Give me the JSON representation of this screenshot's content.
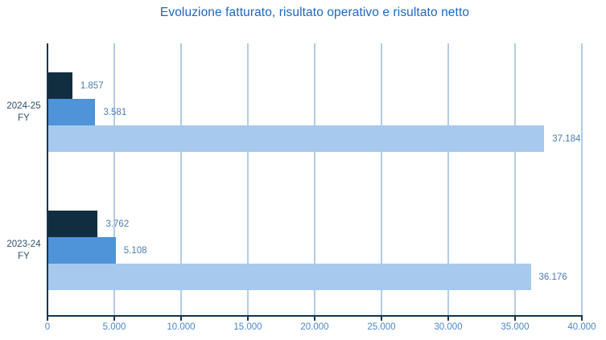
{
  "chart_data": {
    "type": "bar",
    "orientation": "horizontal",
    "title": "Evoluzione fatturato, risultato operativo e risultato netto",
    "categories": [
      "2024-25 FY",
      "2023-24 FY"
    ],
    "category_lines": [
      [
        "2024-25",
        "FY"
      ],
      [
        "2023-24",
        "FY"
      ]
    ],
    "series": [
      {
        "name": "risultato netto",
        "color": "#112e40",
        "values": [
          1857,
          3762
        ],
        "labels": [
          "1.857",
          "3.762"
        ]
      },
      {
        "name": "risultato operativo",
        "color": "#4f93d8",
        "values": [
          3581,
          5108
        ],
        "labels": [
          "3.581",
          "5.108"
        ]
      },
      {
        "name": "fatturato",
        "color": "#a7c9ed",
        "values": [
          37184,
          36176
        ],
        "labels": [
          "37.184",
          "36.176"
        ]
      }
    ],
    "x_axis": {
      "min": 0,
      "max": 40000,
      "tick_step": 5000,
      "tick_labels": [
        "0",
        "5.000",
        "10.000",
        "15.000",
        "20.000",
        "25.000",
        "30.000",
        "35.000",
        "40.000"
      ]
    },
    "legend": "none",
    "grid": "vertical",
    "colors": {
      "title": "#1b68c4",
      "axis_line": "#16364f",
      "gridline": "#b3cce8",
      "value_label": "#4b7cb0",
      "tick_label": "#4c87c8",
      "category_label": "#30506e",
      "background": "#ffffff"
    }
  }
}
